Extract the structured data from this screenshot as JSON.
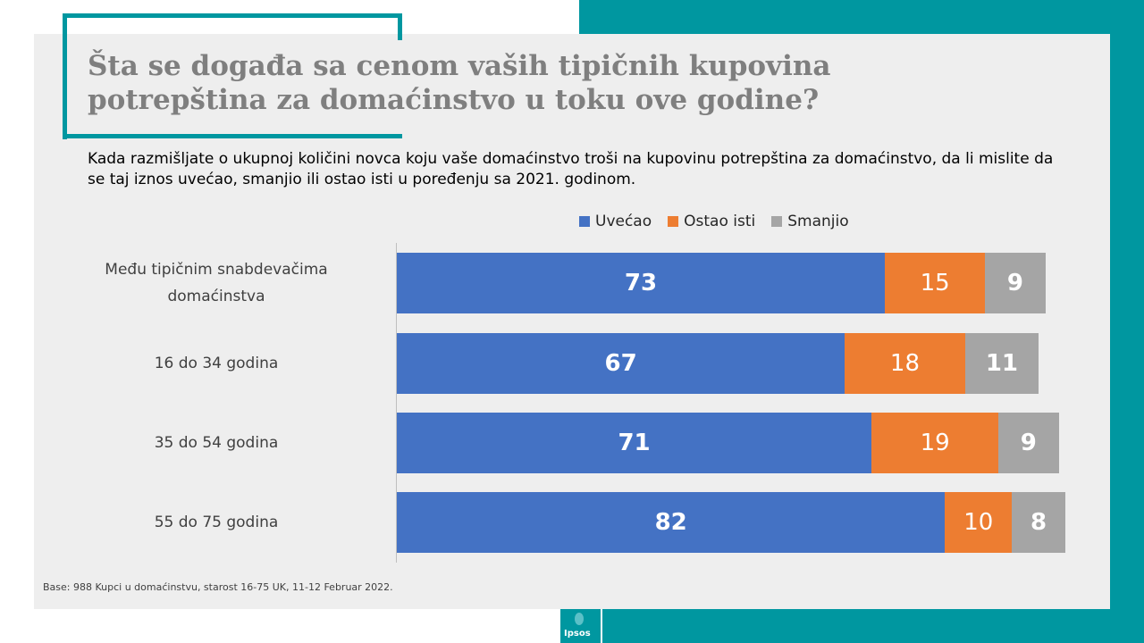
{
  "title": "Šta se događa sa cenom vaših tipičnih kupovina potrepština za domaćinstvo u toku ove godine?",
  "subtitle": "Kada razmišljate o ukupnoj količini novca koju vaše domaćinstvo troši na kupovinu potrepština za domaćinstvo, da li mislite da se taj iznos uvećao, smanjio ili ostao isti u poređenju sa 2021. godinom.",
  "base_note": "Base: 988 Kupci u domaćinstvu, starost 16-75  UK, 11-12 Februar 2022.",
  "logo_text": "Ipsos",
  "colors": {
    "teal": "#0097a0",
    "blue": "#4472c4",
    "orange": "#ed7d31",
    "gray": "#a5a5a5"
  },
  "chart_data": {
    "type": "bar",
    "orientation": "horizontal",
    "stacked": true,
    "categories": [
      "Među tipičnim snabdevačima domaćinstva",
      "16 do 34 godina",
      "35 do 54 godina",
      "55 do 75 godina"
    ],
    "series": [
      {
        "name": "Uvećao",
        "color": "#4472c4",
        "values": [
          73,
          67,
          71,
          82
        ]
      },
      {
        "name": "Ostao isti",
        "color": "#ed7d31",
        "values": [
          15,
          18,
          19,
          10
        ]
      },
      {
        "name": "Smanjio",
        "color": "#a5a5a5",
        "values": [
          9,
          11,
          9,
          8
        ]
      }
    ],
    "legend_position": "top-right",
    "grid": false
  }
}
